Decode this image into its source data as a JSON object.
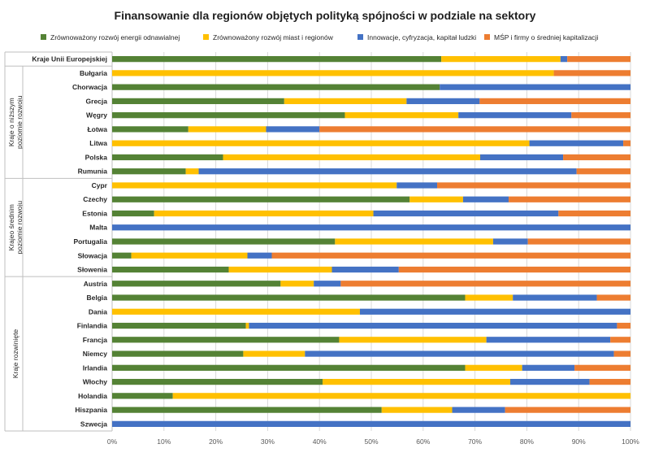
{
  "chart_data": {
    "type": "bar",
    "orientation": "horizontal",
    "stacked": true,
    "percent_stacked": true,
    "title": "Finansowanie dla regionów objętych polityką spójności w podziale na sektory",
    "legend_position": "top",
    "grid": true,
    "xlim": [
      0,
      100
    ],
    "x_ticks": [
      "0%",
      "10%",
      "20%",
      "30%",
      "40%",
      "50%",
      "60%",
      "70%",
      "80%",
      "90%",
      "100%"
    ],
    "categories": [
      "Kraje Unii Europejskiej",
      "Bułgaria",
      "Chorwacja",
      "Grecja",
      "Węgry",
      "Łotwa",
      "Litwa",
      "Polska",
      "Rumunia",
      "Cypr",
      "Czechy",
      "Estonia",
      "Malta",
      "Portugalia",
      "Słowacja",
      "Słowenia",
      "Austria",
      "Belgia",
      "Dania",
      "Finlandia",
      "Francja",
      "Niemcy",
      "Irlandia",
      "Włochy",
      "Holandia",
      "Hiszpania",
      "Szwecja"
    ],
    "groups": [
      {
        "label": "",
        "start": 0,
        "end": 0
      },
      {
        "label": "Kraje o niższym poziomie rozwoju",
        "start": 1,
        "end": 8
      },
      {
        "label": "Krajeo średnim poziomie rozwoju",
        "start": 9,
        "end": 15
      },
      {
        "label": "Kraje rozwinięte",
        "start": 16,
        "end": 26
      }
    ],
    "series": [
      {
        "name": "Zrównoważony rozwój energii odnawialnej",
        "color": "#548235",
        "values": [
          63.5,
          0,
          63.2,
          33.2,
          44.9,
          14.7,
          0,
          21.4,
          14.2,
          0,
          57.4,
          8.1,
          0,
          43.0,
          3.7,
          22.5,
          32.5,
          68.1,
          0,
          25.8,
          43.8,
          25.3,
          68.1,
          40.6,
          11.7,
          52.0,
          0
        ]
      },
      {
        "name": "Zrównoważony rozwój miast i regionów",
        "color": "#ffc000",
        "values": [
          23.0,
          85.2,
          0,
          23.6,
          21.9,
          15.0,
          80.5,
          49.6,
          2.5,
          54.9,
          10.3,
          42.3,
          0,
          30.5,
          22.4,
          19.9,
          6.4,
          9.2,
          47.8,
          0.6,
          28.4,
          11.9,
          11.0,
          36.2,
          88.3,
          13.6,
          0
        ]
      },
      {
        "name": "Innowacje, cyfryzacja, kapitał ludzki",
        "color": "#4472c4",
        "values": [
          1.3,
          0,
          36.8,
          14.1,
          21.8,
          10.3,
          18.1,
          16.0,
          72.9,
          7.8,
          8.8,
          35.7,
          100,
          6.7,
          4.7,
          12.9,
          5.2,
          16.2,
          52.2,
          71.0,
          23.9,
          59.6,
          10.1,
          15.3,
          0,
          10.2,
          100
        ]
      },
      {
        "name": "MŚP i firmy o średniej kapitalizacji",
        "color": "#ed7d31",
        "values": [
          12.2,
          14.8,
          0,
          29.1,
          11.4,
          60.0,
          1.4,
          13.0,
          10.4,
          37.3,
          23.5,
          13.9,
          0,
          19.8,
          69.2,
          44.7,
          55.9,
          6.5,
          0,
          2.6,
          3.9,
          3.2,
          10.8,
          7.9,
          0,
          24.2,
          0
        ]
      }
    ]
  }
}
